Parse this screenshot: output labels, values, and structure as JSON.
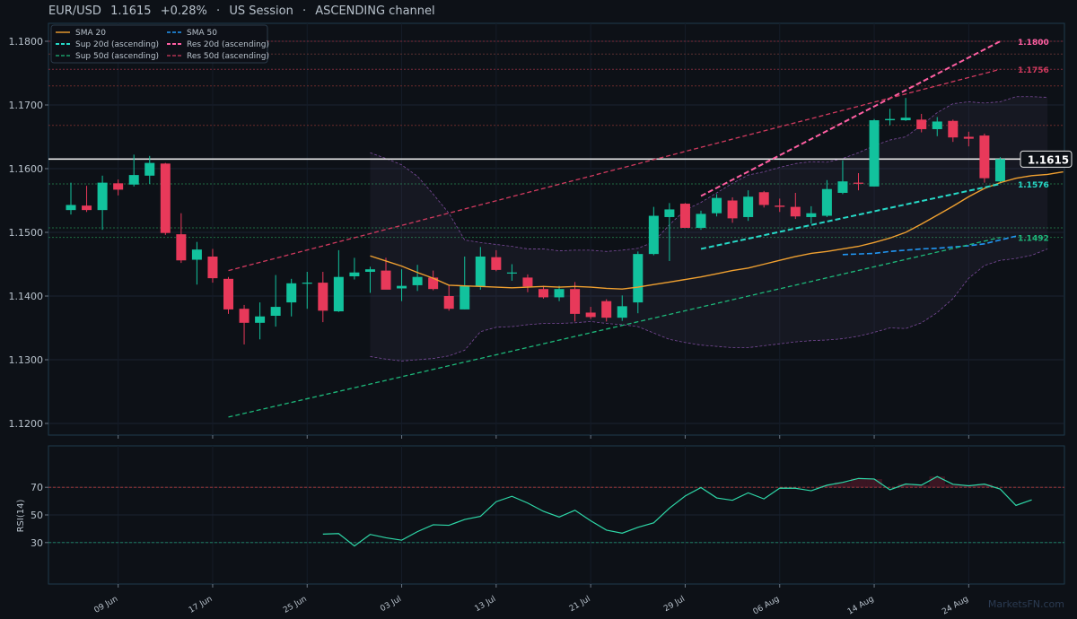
{
  "header": {
    "symbol": "EUR/USD",
    "price": "1.1615",
    "change": "+0.28%",
    "session": "US Session",
    "pattern": "ASCENDING channel",
    "separator": "·"
  },
  "watermark": "MarketsFN.com",
  "colors": {
    "background": "#0d1117",
    "bull": "#12c29d",
    "bear": "#e8395a",
    "sma20": "#f0a030",
    "sma50": "#2196f3",
    "sup20": "#26d9c7",
    "sup50": "#1db87a",
    "res20": "#ff5fa2",
    "res50": "#d13a5f",
    "bands": "#7a4a9a",
    "rsi": "#2ed8a8",
    "price_line": "#e8e8e8"
  },
  "chart_data": [
    {
      "type": "candlestick",
      "title": "EUR/USD 1.1615 +0.28% · US Session · ASCENDING channel",
      "ylim": [
        1.118,
        1.182
      ],
      "y_ticks": [
        "1.1200",
        "1.1300",
        "1.1400",
        "1.1500",
        "1.1600",
        "1.1700",
        "1.1800"
      ],
      "x_ticks": [
        "09 Jun",
        "17 Jun",
        "25 Jun",
        "03 Jul",
        "13 Jul",
        "21 Jul",
        "29 Jul",
        "06 Aug",
        "14 Aug",
        "24 Aug"
      ],
      "x_tick_index": [
        3,
        9,
        15,
        21,
        27,
        33,
        39,
        45,
        51,
        57
      ],
      "candles": [
        {
          "o": 1.1535,
          "h": 1.1578,
          "l": 1.1528,
          "c": 1.1543
        },
        {
          "o": 1.1542,
          "h": 1.1573,
          "l": 1.1532,
          "c": 1.1535
        },
        {
          "o": 1.1535,
          "h": 1.1589,
          "l": 1.1504,
          "c": 1.1578
        },
        {
          "o": 1.1577,
          "h": 1.1583,
          "l": 1.1558,
          "c": 1.1567
        },
        {
          "o": 1.1575,
          "h": 1.1622,
          "l": 1.1572,
          "c": 1.159
        },
        {
          "o": 1.1589,
          "h": 1.162,
          "l": 1.1576,
          "c": 1.1609
        },
        {
          "o": 1.1608,
          "h": 1.1609,
          "l": 1.1496,
          "c": 1.1499
        },
        {
          "o": 1.1497,
          "h": 1.153,
          "l": 1.1452,
          "c": 1.1456
        },
        {
          "o": 1.1457,
          "h": 1.1485,
          "l": 1.1418,
          "c": 1.1473
        },
        {
          "o": 1.1462,
          "h": 1.1474,
          "l": 1.1421,
          "c": 1.1428
        },
        {
          "o": 1.1427,
          "h": 1.143,
          "l": 1.1372,
          "c": 1.1379
        },
        {
          "o": 1.138,
          "h": 1.1386,
          "l": 1.1324,
          "c": 1.1358
        },
        {
          "o": 1.1358,
          "h": 1.139,
          "l": 1.1332,
          "c": 1.1368
        },
        {
          "o": 1.1369,
          "h": 1.1433,
          "l": 1.1352,
          "c": 1.1383
        },
        {
          "o": 1.139,
          "h": 1.1427,
          "l": 1.1368,
          "c": 1.142
        },
        {
          "o": 1.142,
          "h": 1.1438,
          "l": 1.138,
          "c": 1.1421
        },
        {
          "o": 1.1421,
          "h": 1.1438,
          "l": 1.1359,
          "c": 1.1377
        },
        {
          "o": 1.1376,
          "h": 1.1472,
          "l": 1.1375,
          "c": 1.143
        },
        {
          "o": 1.1431,
          "h": 1.146,
          "l": 1.1426,
          "c": 1.1437
        },
        {
          "o": 1.1438,
          "h": 1.1446,
          "l": 1.1405,
          "c": 1.1442
        },
        {
          "o": 1.144,
          "h": 1.146,
          "l": 1.1414,
          "c": 1.141
        },
        {
          "o": 1.1412,
          "h": 1.1442,
          "l": 1.1392,
          "c": 1.1416
        },
        {
          "o": 1.1417,
          "h": 1.1449,
          "l": 1.1408,
          "c": 1.143
        },
        {
          "o": 1.1429,
          "h": 1.144,
          "l": 1.1409,
          "c": 1.1411
        },
        {
          "o": 1.14,
          "h": 1.1418,
          "l": 1.1377,
          "c": 1.138
        },
        {
          "o": 1.1379,
          "h": 1.1462,
          "l": 1.1379,
          "c": 1.1416
        },
        {
          "o": 1.1415,
          "h": 1.1477,
          "l": 1.141,
          "c": 1.1462
        },
        {
          "o": 1.1461,
          "h": 1.1472,
          "l": 1.1439,
          "c": 1.1441
        },
        {
          "o": 1.1437,
          "h": 1.145,
          "l": 1.1424,
          "c": 1.1437
        },
        {
          "o": 1.1429,
          "h": 1.1434,
          "l": 1.1406,
          "c": 1.1415
        },
        {
          "o": 1.1411,
          "h": 1.1416,
          "l": 1.1396,
          "c": 1.1398
        },
        {
          "o": 1.1398,
          "h": 1.1416,
          "l": 1.1392,
          "c": 1.1411
        },
        {
          "o": 1.1411,
          "h": 1.1422,
          "l": 1.136,
          "c": 1.1372
        },
        {
          "o": 1.1374,
          "h": 1.1383,
          "l": 1.1364,
          "c": 1.1367
        },
        {
          "o": 1.1392,
          "h": 1.1395,
          "l": 1.136,
          "c": 1.1366
        },
        {
          "o": 1.1366,
          "h": 1.1401,
          "l": 1.1361,
          "c": 1.1384
        },
        {
          "o": 1.139,
          "h": 1.147,
          "l": 1.1373,
          "c": 1.1466
        },
        {
          "o": 1.1466,
          "h": 1.154,
          "l": 1.1464,
          "c": 1.1526
        },
        {
          "o": 1.1524,
          "h": 1.1546,
          "l": 1.1455,
          "c": 1.1536
        },
        {
          "o": 1.1545,
          "h": 1.1546,
          "l": 1.1508,
          "c": 1.1507
        },
        {
          "o": 1.1507,
          "h": 1.1534,
          "l": 1.1504,
          "c": 1.1529
        },
        {
          "o": 1.153,
          "h": 1.156,
          "l": 1.1525,
          "c": 1.1554
        },
        {
          "o": 1.155,
          "h": 1.1555,
          "l": 1.1515,
          "c": 1.1522
        },
        {
          "o": 1.1524,
          "h": 1.1566,
          "l": 1.1518,
          "c": 1.1556
        },
        {
          "o": 1.1563,
          "h": 1.1565,
          "l": 1.1539,
          "c": 1.1543
        },
        {
          "o": 1.1542,
          "h": 1.1553,
          "l": 1.1532,
          "c": 1.154
        },
        {
          "o": 1.154,
          "h": 1.1562,
          "l": 1.1521,
          "c": 1.1525
        },
        {
          "o": 1.1524,
          "h": 1.1541,
          "l": 1.1514,
          "c": 1.153
        },
        {
          "o": 1.1526,
          "h": 1.1582,
          "l": 1.1524,
          "c": 1.1568
        },
        {
          "o": 1.1562,
          "h": 1.1613,
          "l": 1.156,
          "c": 1.158
        },
        {
          "o": 1.1578,
          "h": 1.1593,
          "l": 1.1566,
          "c": 1.1577
        },
        {
          "o": 1.1572,
          "h": 1.1678,
          "l": 1.1572,
          "c": 1.1676
        },
        {
          "o": 1.1676,
          "h": 1.1694,
          "l": 1.1668,
          "c": 1.1678
        },
        {
          "o": 1.1676,
          "h": 1.1711,
          "l": 1.1675,
          "c": 1.168
        },
        {
          "o": 1.1677,
          "h": 1.1686,
          "l": 1.1657,
          "c": 1.1662
        },
        {
          "o": 1.1662,
          "h": 1.1681,
          "l": 1.1651,
          "c": 1.1674
        },
        {
          "o": 1.1675,
          "h": 1.1677,
          "l": 1.1642,
          "c": 1.1649
        },
        {
          "o": 1.165,
          "h": 1.1658,
          "l": 1.1635,
          "c": 1.1647
        },
        {
          "o": 1.1652,
          "h": 1.1655,
          "l": 1.1578,
          "c": 1.1585
        },
        {
          "o": 1.158,
          "h": 1.1618,
          "l": 1.1578,
          "c": 1.1615
        }
      ],
      "series": [
        {
          "name": "SMA 20",
          "start": 19,
          "values": [
            1.1463,
            1.1455,
            1.1447,
            1.1437,
            1.1428,
            1.1417,
            1.1416,
            1.1415,
            1.1414,
            1.1413,
            1.1414,
            1.1415,
            1.1414,
            1.1415,
            1.1414,
            1.1412,
            1.1411,
            1.1414,
            1.1418,
            1.1422,
            1.1426,
            1.143,
            1.1435,
            1.144,
            1.1444,
            1.145,
            1.1456,
            1.1462,
            1.1467,
            1.147,
            1.1474,
            1.1478,
            1.1484,
            1.1491,
            1.15,
            1.1513,
            1.1527,
            1.1541,
            1.1556,
            1.1569,
            1.1578,
            1.1585,
            1.1589,
            1.1591,
            1.1595
          ]
        },
        {
          "name": "SMA 50",
          "start": 49,
          "values": [
            1.1465,
            1.1466,
            1.1467,
            1.147,
            1.1472,
            1.1474,
            1.1475,
            1.1477,
            1.1479,
            1.1482,
            1.1488,
            1.1494
          ]
        },
        {
          "name": "Sup 20d (ascending)",
          "x": [
            40,
            59
          ],
          "y": [
            1.1474,
            1.1576
          ]
        },
        {
          "name": "Sup 50d (ascending)",
          "x": [
            10,
            59
          ],
          "y": [
            1.121,
            1.1492
          ]
        },
        {
          "name": "Res 20d (ascending)",
          "x": [
            40,
            59
          ],
          "y": [
            1.1557,
            1.18
          ]
        },
        {
          "name": "Res 50d (ascending)",
          "x": [
            10,
            59
          ],
          "y": [
            1.144,
            1.1756
          ]
        }
      ],
      "bands": {
        "start": 19,
        "upper": [
          1.1625,
          1.1616,
          1.1606,
          1.1588,
          1.156,
          1.153,
          1.1488,
          1.1484,
          1.1481,
          1.1478,
          1.1474,
          1.1474,
          1.1471,
          1.1472,
          1.1472,
          1.147,
          1.1472,
          1.1475,
          1.1485,
          1.1512,
          1.1535,
          1.1547,
          1.1562,
          1.1577,
          1.159,
          1.1595,
          1.1602,
          1.1608,
          1.1611,
          1.161,
          1.1616,
          1.1625,
          1.1636,
          1.1645,
          1.165,
          1.1668,
          1.1688,
          1.1702,
          1.1705,
          1.1703,
          1.1705,
          1.1713,
          1.1713,
          1.1712
        ],
        "lower": [
          1.1305,
          1.1301,
          1.1298,
          1.13,
          1.1302,
          1.1306,
          1.1315,
          1.1344,
          1.1351,
          1.1352,
          1.1355,
          1.1357,
          1.1357,
          1.1358,
          1.136,
          1.1357,
          1.1355,
          1.1352,
          1.1342,
          1.1332,
          1.1327,
          1.1323,
          1.1321,
          1.1319,
          1.1319,
          1.1322,
          1.1325,
          1.1328,
          1.133,
          1.1331,
          1.1333,
          1.1337,
          1.1343,
          1.135,
          1.1349,
          1.1358,
          1.1374,
          1.1396,
          1.1428,
          1.1448,
          1.1456,
          1.1459,
          1.1464,
          1.1474
        ]
      },
      "reference_lines": [
        1.1615,
        1.18,
        1.1756,
        1.1576,
        1.1492,
        1.173,
        1.1668,
        1.1507,
        1.178
      ],
      "labels": {
        "current": "1.1615",
        "res20": "1.1800",
        "res50": "1.1756",
        "sup20": "1.1576",
        "sup50": "1.1492"
      },
      "legend": [
        "SMA 20",
        "SMA 50",
        "Sup 20d (ascending)",
        "Res 20d (ascending)",
        "Sup 50d (ascending)",
        "Res 50d (ascending)"
      ],
      "legend_position": "top-left"
    },
    {
      "type": "line",
      "ylabel": "RSI(14)",
      "ylim": [
        0,
        100
      ],
      "y_ticks": [
        "30",
        "50",
        "70"
      ],
      "levels": [
        70,
        30
      ],
      "start": 16,
      "values": [
        36.1,
        36.5,
        27.5,
        35.9,
        33.5,
        31.7,
        37.9,
        42.9,
        42.5,
        46.7,
        49.0,
        59.6,
        63.5,
        58.6,
        52.6,
        48.5,
        53.4,
        45.8,
        39.0,
        36.8,
        41.0,
        44.3,
        54.9,
        63.7,
        69.8,
        62.3,
        60.6,
        66.0,
        61.6,
        69.4,
        69.3,
        67.5,
        71.5,
        73.6,
        76.4,
        76.0,
        68.2,
        72.4,
        71.6,
        77.8,
        72.2,
        71.1,
        72.3,
        68.7,
        56.9,
        60.9
      ]
    }
  ]
}
